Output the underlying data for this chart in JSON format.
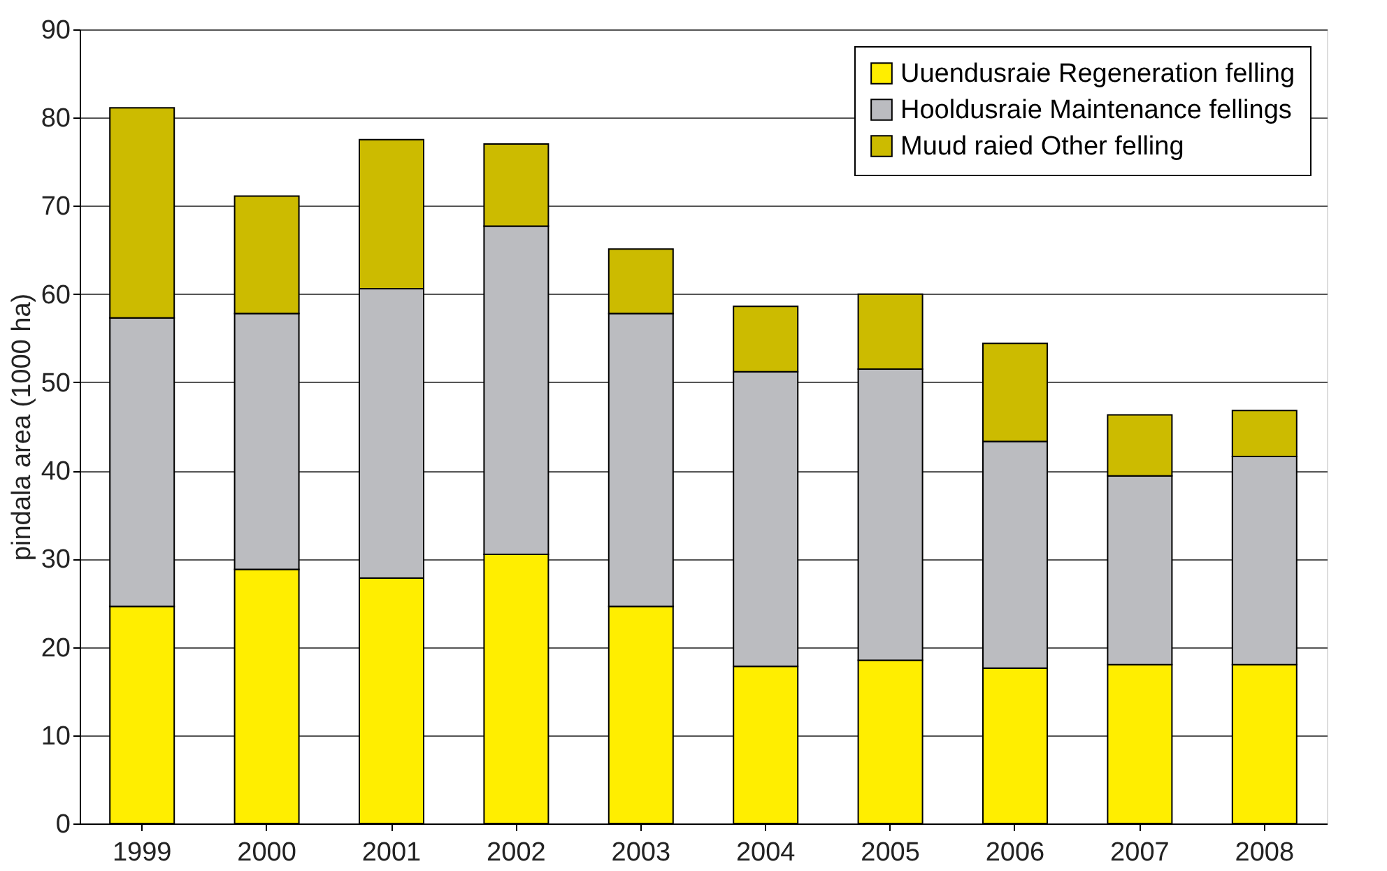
{
  "chart_data": {
    "type": "bar",
    "stacked": true,
    "ylabel": "pindala area (1000 ha)",
    "categories": [
      "1999",
      "2000",
      "2001",
      "2002",
      "2003",
      "2004",
      "2005",
      "2006",
      "2007",
      "2008"
    ],
    "series": [
      {
        "name": "Uuendusraie Regeneration felling",
        "color": "#ffee00",
        "values": [
          24.6,
          28.8,
          27.8,
          30.5,
          24.6,
          17.8,
          18.5,
          17.6,
          18.0,
          18.0
        ]
      },
      {
        "name": "Hooldusraie Maintenance fellings",
        "color": "#bbbcc0",
        "values": [
          32.7,
          29.0,
          32.8,
          37.2,
          33.2,
          33.4,
          33.0,
          25.7,
          21.4,
          23.6
        ]
      },
      {
        "name": "Muud raied Other felling",
        "color": "#ccbb00",
        "values": [
          23.8,
          13.3,
          16.9,
          9.3,
          7.3,
          7.4,
          8.5,
          11.1,
          6.9,
          5.2
        ]
      }
    ],
    "ylim": [
      0,
      90
    ],
    "yticks": [
      0,
      10,
      20,
      30,
      40,
      50,
      60,
      70,
      80,
      90
    ],
    "grid": "y",
    "legend": "top right"
  }
}
